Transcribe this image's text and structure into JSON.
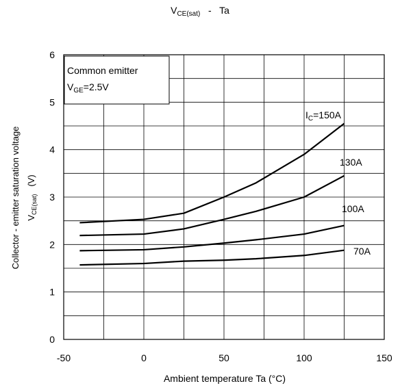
{
  "chart_data": {
    "type": "line",
    "title": {
      "main": "V",
      "sub": "CE(sat)",
      "rest": "   -   Ta"
    },
    "xlabel": "Ambient temperature  Ta  (°C)",
    "ylabel": {
      "line1": "Collector - emitter saturation voltage",
      "line2_main": "V",
      "line2_sub": "CE(sat)",
      "line2_rest": "   (V)"
    },
    "xlim": [
      -50,
      150
    ],
    "ylim": [
      0,
      6
    ],
    "xticks": [
      -50,
      0,
      50,
      100,
      150
    ],
    "yticks": [
      0,
      1,
      2,
      3,
      4,
      5,
      6
    ],
    "x_gridlines": [
      -25,
      0,
      25,
      50,
      75,
      100,
      125
    ],
    "y_gridlines": [
      0.5,
      1,
      1.5,
      2,
      2.5,
      3,
      3.5,
      4,
      4.5,
      5,
      5.5
    ],
    "grid": true,
    "annotation_box": {
      "line1": "Common emitter",
      "line2_main": "V",
      "line2_sub": "GE",
      "line2_rest": "=2.5V"
    },
    "series": [
      {
        "label_main": "I",
        "label_sub": "C",
        "label_rest": "=150A",
        "x": [
          -40,
          0,
          25,
          50,
          70,
          100,
          125
        ],
        "y": [
          2.46,
          2.53,
          2.66,
          3.0,
          3.3,
          3.9,
          4.55
        ]
      },
      {
        "label_main": "",
        "label_sub": "",
        "label_rest": "130A",
        "x": [
          -40,
          0,
          25,
          50,
          70,
          100,
          125
        ],
        "y": [
          2.19,
          2.22,
          2.33,
          2.53,
          2.7,
          3.0,
          3.45
        ]
      },
      {
        "label_main": "",
        "label_sub": "",
        "label_rest": "100A",
        "x": [
          -40,
          0,
          25,
          50,
          70,
          100,
          125
        ],
        "y": [
          1.87,
          1.89,
          1.95,
          2.03,
          2.1,
          2.22,
          2.4
        ]
      },
      {
        "label_main": "",
        "label_sub": "",
        "label_rest": "70A",
        "x": [
          -40,
          0,
          25,
          50,
          70,
          100,
          125
        ],
        "y": [
          1.57,
          1.6,
          1.65,
          1.67,
          1.7,
          1.77,
          1.88
        ]
      }
    ]
  }
}
